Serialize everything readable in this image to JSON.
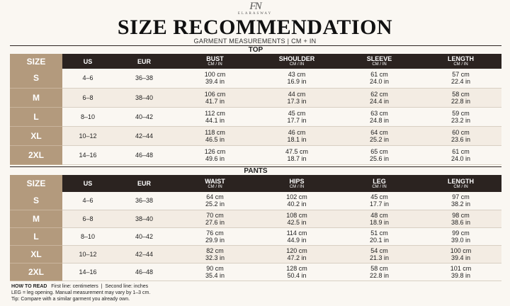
{
  "brand": {
    "monogram": "FN",
    "name": "ELARASWAY"
  },
  "header": {
    "title": "SIZE RECOMMENDATION",
    "subtitle": "GARMENT MEASUREMENTS | CM + IN"
  },
  "tables": [
    {
      "title": "TOP",
      "columns": [
        "SIZE",
        "US",
        "EUR"
      ],
      "measure_columns": [
        {
          "label": "BUST",
          "unit": "CM / IN"
        },
        {
          "label": "SHOULDER",
          "unit": "CM / IN"
        },
        {
          "label": "SLEEVE",
          "unit": "CM / IN"
        },
        {
          "label": "LENGTH",
          "unit": "CM / IN"
        }
      ],
      "rows": [
        {
          "cells": [
            "S",
            "4–6",
            "36–38"
          ],
          "measures": [
            [
              "100 cm",
              "39.4 in"
            ],
            [
              "43 cm",
              "16.9 in"
            ],
            [
              "61 cm",
              "24.0 in"
            ],
            [
              "57 cm",
              "22.4 in"
            ]
          ]
        },
        {
          "cells": [
            "M",
            "6–8",
            "38–40"
          ],
          "measures": [
            [
              "106 cm",
              "41.7 in"
            ],
            [
              "44 cm",
              "17.3 in"
            ],
            [
              "62 cm",
              "24.4 in"
            ],
            [
              "58 cm",
              "22.8 in"
            ]
          ]
        },
        {
          "cells": [
            "L",
            "8–10",
            "40–42"
          ],
          "measures": [
            [
              "112 cm",
              "44.1 in"
            ],
            [
              "45 cm",
              "17.7 in"
            ],
            [
              "63 cm",
              "24.8 in"
            ],
            [
              "59 cm",
              "23.2 in"
            ]
          ]
        },
        {
          "cells": [
            "XL",
            "10–12",
            "42–44"
          ],
          "measures": [
            [
              "118 cm",
              "46.5 in"
            ],
            [
              "46 cm",
              "18.1 in"
            ],
            [
              "64 cm",
              "25.2 in"
            ],
            [
              "60 cm",
              "23.6 in"
            ]
          ]
        },
        {
          "cells": [
            "2XL",
            "14–16",
            "46–48"
          ],
          "measures": [
            [
              "126 cm",
              "49.6 in"
            ],
            [
              "47.5 cm",
              "18.7 in"
            ],
            [
              "65 cm",
              "25.6 in"
            ],
            [
              "61 cm",
              "24.0 in"
            ]
          ]
        }
      ]
    },
    {
      "title": "PANTS",
      "columns": [
        "SIZE",
        "US",
        "EUR"
      ],
      "measure_columns": [
        {
          "label": "WAIST",
          "unit": "CM / IN"
        },
        {
          "label": "HIPS",
          "unit": "CM / IN"
        },
        {
          "label": "LEG",
          "unit": "CM / IN"
        },
        {
          "label": "LENGTH",
          "unit": "CM / IN"
        }
      ],
      "rows": [
        {
          "cells": [
            "S",
            "4–6",
            "36–38"
          ],
          "measures": [
            [
              "64 cm",
              "25.2 in"
            ],
            [
              "102 cm",
              "40.2 in"
            ],
            [
              "45 cm",
              "17.7 in"
            ],
            [
              "97 cm",
              "38.2 in"
            ]
          ]
        },
        {
          "cells": [
            "M",
            "6–8",
            "38–40"
          ],
          "measures": [
            [
              "70 cm",
              "27.6 in"
            ],
            [
              "108 cm",
              "42.5 in"
            ],
            [
              "48 cm",
              "18.9 in"
            ],
            [
              "98 cm",
              "38.6 in"
            ]
          ]
        },
        {
          "cells": [
            "L",
            "8–10",
            "40–42"
          ],
          "measures": [
            [
              "76 cm",
              "29.9 in"
            ],
            [
              "114 cm",
              "44.9 in"
            ],
            [
              "51 cm",
              "20.1 in"
            ],
            [
              "99 cm",
              "39.0 in"
            ]
          ]
        },
        {
          "cells": [
            "XL",
            "10–12",
            "42–44"
          ],
          "measures": [
            [
              "82 cm",
              "32.3 in"
            ],
            [
              "120 cm",
              "47.2 in"
            ],
            [
              "54 cm",
              "21.3 in"
            ],
            [
              "100 cm",
              "39.4 in"
            ]
          ]
        },
        {
          "cells": [
            "2XL",
            "14–16",
            "46–48"
          ],
          "measures": [
            [
              "90 cm",
              "35.4 in"
            ],
            [
              "128 cm",
              "50.4 in"
            ],
            [
              "58 cm",
              "22.8 in"
            ],
            [
              "101 cm",
              "39.8 in"
            ]
          ]
        }
      ]
    }
  ],
  "footer": {
    "heading": "HOW TO READ",
    "line1a": "First line: centimeters",
    "line1b": "Second line: inches",
    "line2": "LEG = leg opening. Manual measurement may vary by 1–3 cm.",
    "line3": "Tip: Compare with a similar garment you already own."
  }
}
